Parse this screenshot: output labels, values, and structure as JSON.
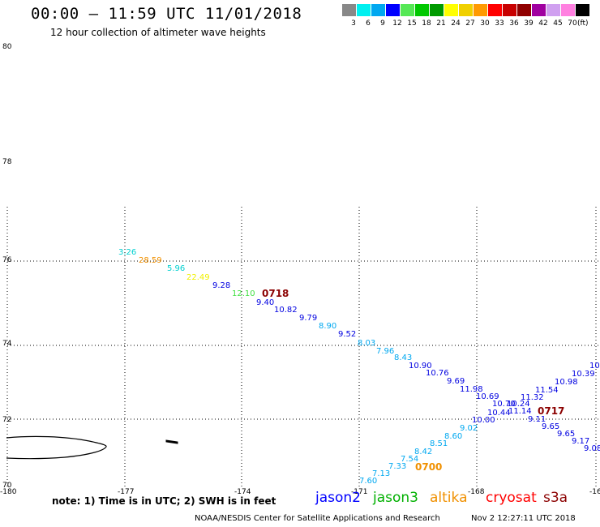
{
  "header": {
    "title": "00:00 – 11:59 UTC 11/01/2018",
    "subtitle": "12 hour collection of altimeter wave heights"
  },
  "colorbar": {
    "unit": "(ft)",
    "bins": [
      {
        "label": "3",
        "color": "#888888"
      },
      {
        "label": "6",
        "color": "#00f0f0"
      },
      {
        "label": "9",
        "color": "#00a8f0"
      },
      {
        "label": "12",
        "color": "#0000ff"
      },
      {
        "label": "15",
        "color": "#55e855"
      },
      {
        "label": "18",
        "color": "#00c800"
      },
      {
        "label": "21",
        "color": "#009a00"
      },
      {
        "label": "24",
        "color": "#ffff00"
      },
      {
        "label": "27",
        "color": "#f0d000"
      },
      {
        "label": "30",
        "color": "#ff9a00"
      },
      {
        "label": "33",
        "color": "#ff0000"
      },
      {
        "label": "36",
        "color": "#c80000"
      },
      {
        "label": "39",
        "color": "#900000"
      },
      {
        "label": "42",
        "color": "#a000a0"
      },
      {
        "label": "45",
        "color": "#d0a0f0"
      },
      {
        "label": "70",
        "color": "#ff80e0"
      },
      {
        "label": "",
        "color": "#000000"
      }
    ]
  },
  "map": {
    "lat_labels": [
      "80",
      "78",
      "76",
      "74",
      "72",
      "70"
    ],
    "lon_labels": [
      "-180",
      "-177",
      "-174",
      "-171",
      "-168",
      "-16"
    ],
    "points": [
      {
        "text": "3.26",
        "color": "#00d0d0"
      },
      {
        "text": "28.59",
        "color": "#f09000"
      },
      {
        "text": "5.96",
        "color": "#00d0d0"
      },
      {
        "text": "22.49",
        "color": "#f0f000"
      },
      {
        "text": "9.28",
        "color": "#0000e0"
      },
      {
        "text": "12.10",
        "color": "#40e040"
      },
      {
        "text": "9.40",
        "color": "#0000e0"
      },
      {
        "text": "10.82",
        "color": "#0000e0"
      },
      {
        "text": "9.79",
        "color": "#0000e0"
      },
      {
        "text": "8.90",
        "color": "#00a8f0"
      },
      {
        "text": "9.52",
        "color": "#0000e0"
      },
      {
        "text": "8.03",
        "color": "#00a8f0"
      },
      {
        "text": "7.96",
        "color": "#00a8f0"
      },
      {
        "text": "8.43",
        "color": "#00a8f0"
      },
      {
        "text": "10.90",
        "color": "#0000e0"
      },
      {
        "text": "10.76",
        "color": "#0000e0"
      },
      {
        "text": "9.69",
        "color": "#0000e0"
      },
      {
        "text": "11.98",
        "color": "#0000e0"
      },
      {
        "text": "10.69",
        "color": "#0000e0"
      },
      {
        "text": "10.70",
        "color": "#0000e0"
      },
      {
        "text": "10.24",
        "color": "#0000e0"
      },
      {
        "text": "10.44",
        "color": "#0000e0"
      },
      {
        "text": "11.14",
        "color": "#0000e0"
      },
      {
        "text": "10.00",
        "color": "#0000e0"
      },
      {
        "text": "9.02",
        "color": "#00a8f0"
      },
      {
        "text": "8.60",
        "color": "#00a8f0"
      },
      {
        "text": "8.51",
        "color": "#00a8f0"
      },
      {
        "text": "8.42",
        "color": "#00a8f0"
      },
      {
        "text": "7.54",
        "color": "#00a8f0"
      },
      {
        "text": "7.33",
        "color": "#00a8f0"
      },
      {
        "text": "7.13",
        "color": "#00a8f0"
      },
      {
        "text": "7.60",
        "color": "#00a8f0"
      },
      {
        "text": "9.11",
        "color": "#0000e0"
      },
      {
        "text": "9.65",
        "color": "#0000e0"
      },
      {
        "text": "9.65",
        "color": "#0000e0"
      },
      {
        "text": "9.17",
        "color": "#0000e0"
      },
      {
        "text": "9.08",
        "color": "#0000e0"
      },
      {
        "text": "11.32",
        "color": "#0000e0"
      },
      {
        "text": "11.54",
        "color": "#0000e0"
      },
      {
        "text": "10.98",
        "color": "#0000e0"
      },
      {
        "text": "10.39",
        "color": "#0000e0"
      },
      {
        "text": "10",
        "color": "#0000e0"
      }
    ],
    "time_labels": [
      {
        "text": "0718",
        "color": "#8b0000"
      },
      {
        "text": "0717",
        "color": "#8b0000"
      },
      {
        "text": "0700",
        "color": "#f09000"
      }
    ]
  },
  "footer": {
    "note": "note:  1) Time is in UTC;  2) SWH is in feet",
    "legend": [
      {
        "text": "jason2",
        "color": "#0000ff"
      },
      {
        "text": "jason3",
        "color": "#00b000"
      },
      {
        "text": "altika",
        "color": "#f09000"
      },
      {
        "text": "cryosat",
        "color": "#ff0000"
      },
      {
        "text": "s3a",
        "color": "#8b0000"
      }
    ],
    "credit": "NOAA/NESDIS Center for Satellite Applications and Research",
    "timestamp": "Nov  2 12:27:11 UTC 2018"
  }
}
